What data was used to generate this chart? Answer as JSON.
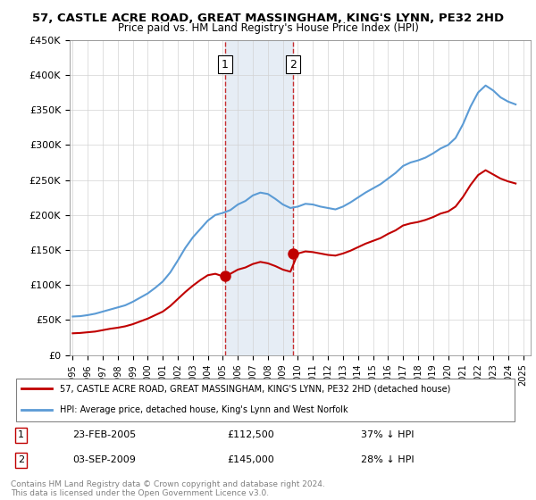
{
  "title1": "57, CASTLE ACRE ROAD, GREAT MASSINGHAM, KING'S LYNN, PE32 2HD",
  "title2": "Price paid vs. HM Land Registry's House Price Index (HPI)",
  "ylabel": "",
  "ylim": [
    0,
    450000
  ],
  "yticks": [
    0,
    50000,
    100000,
    150000,
    200000,
    250000,
    300000,
    350000,
    400000,
    450000
  ],
  "ytick_labels": [
    "£0",
    "£50K",
    "£100K",
    "£150K",
    "£200K",
    "£250K",
    "£300K",
    "£350K",
    "£400K",
    "£450K"
  ],
  "legend_line1": "57, CASTLE ACRE ROAD, GREAT MASSINGHAM, KING'S LYNN, PE32 2HD (detached house)",
  "legend_line2": "HPI: Average price, detached house, King's Lynn and West Norfolk",
  "purchase1_label": "1",
  "purchase1_date": "23-FEB-2005",
  "purchase1_price": "£112,500",
  "purchase1_hpi": "37% ↓ HPI",
  "purchase2_label": "2",
  "purchase2_date": "03-SEP-2009",
  "purchase2_price": "£145,000",
  "purchase2_hpi": "28% ↓ HPI",
  "footer": "Contains HM Land Registry data © Crown copyright and database right 2024.\nThis data is licensed under the Open Government Licence v3.0.",
  "hpi_color": "#5b9bd5",
  "price_color": "#c00000",
  "shaded_color": "#dce6f1",
  "purchase1_year": 2005.15,
  "purchase2_year": 2009.67,
  "purchase1_price_val": 112500,
  "purchase2_price_val": 145000
}
